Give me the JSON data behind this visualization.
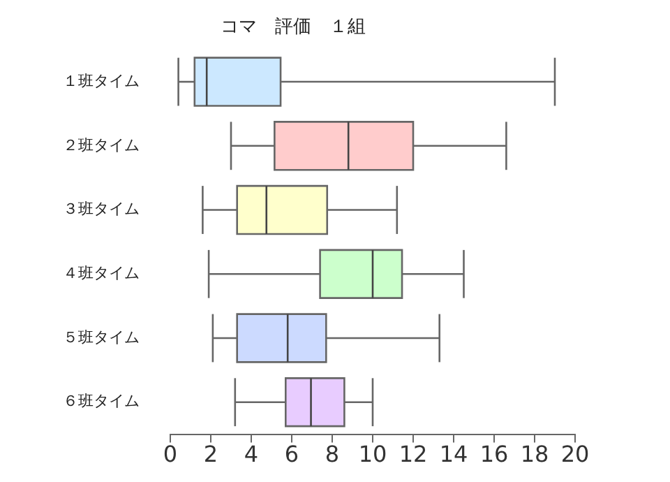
{
  "chart_data": {
    "type": "box",
    "title": "コマ　評価　１組",
    "orientation": "horizontal",
    "grid": false,
    "categories": [
      "１班タイム",
      "２班タイム",
      "３班タイム",
      "４班タイム",
      "５班タイム",
      "６班タイム"
    ],
    "boxes": [
      {
        "low": 0.4,
        "q1": 1.2,
        "median": 1.8,
        "q3": 5.45,
        "high": 19.0
      },
      {
        "low": 3.0,
        "q1": 5.15,
        "median": 8.8,
        "q3": 12.0,
        "high": 16.6
      },
      {
        "low": 1.6,
        "q1": 3.3,
        "median": 4.75,
        "q3": 7.75,
        "high": 11.2
      },
      {
        "low": 1.9,
        "q1": 7.4,
        "median": 10.0,
        "q3": 11.45,
        "high": 14.5
      },
      {
        "low": 2.1,
        "q1": 3.3,
        "median": 5.8,
        "q3": 7.7,
        "high": 13.3
      },
      {
        "low": 3.2,
        "q1": 5.7,
        "median": 6.95,
        "q3": 8.6,
        "high": 10.0
      }
    ],
    "colors": [
      "#cce8ff",
      "#ffcccc",
      "#ffffcc",
      "#ccffcc",
      "#ccdaff",
      "#e8ccff"
    ],
    "xlim": [
      0,
      20
    ],
    "xticks": [
      0,
      2,
      4,
      6,
      8,
      10,
      12,
      14,
      16,
      18,
      20
    ]
  }
}
